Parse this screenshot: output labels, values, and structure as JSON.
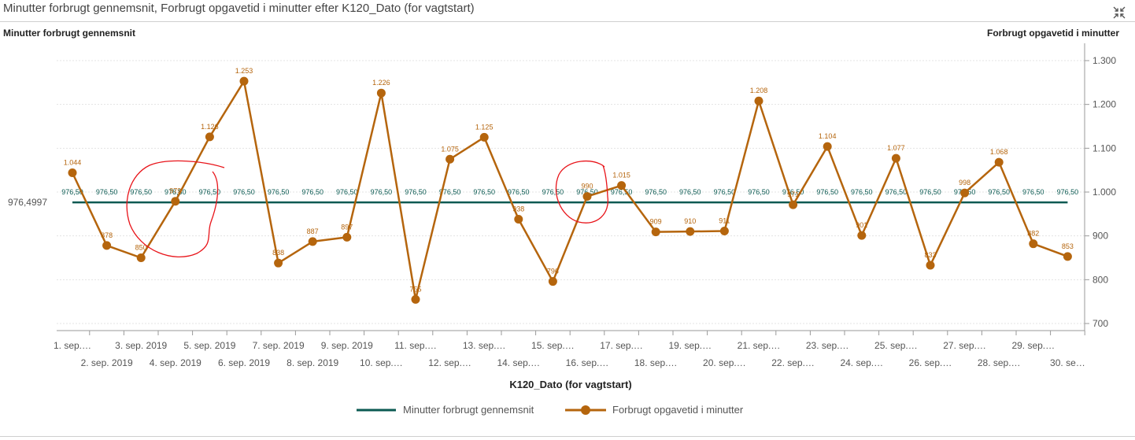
{
  "header": {
    "title": "Minutter forbrugt gennemsnit, Forbrugt opgavetid i minutter efter K120_Dato (for vagtstart)",
    "collapse_icon": "collapse-arrows-icon"
  },
  "chart_data": {
    "type": "line",
    "xlabel": "K120_Dato (for vagtstart)",
    "ylabel_left": "Minutter forbrugt gennemsnit",
    "ylabel_right": "Forbrugt opgavetid i minutter",
    "left_axis_tick": "976,4997",
    "right_ticks": [
      "700",
      "800",
      "900",
      "1.000",
      "1.100",
      "1.200",
      "1.300"
    ],
    "ylim": [
      680,
      1310
    ],
    "grid": true,
    "legend_placement": "bottom",
    "categories": [
      "1. sep.…",
      "2. sep. 2019",
      "3. sep. 2019",
      "4. sep. 2019",
      "5. sep. 2019",
      "6. sep. 2019",
      "7. sep. 2019",
      "8. sep. 2019",
      "9. sep. 2019",
      "10. sep.…",
      "11. sep.…",
      "12. sep.…",
      "13. sep.…",
      "14. sep.…",
      "15. sep.…",
      "16. sep.…",
      "17. sep.…",
      "18. sep.…",
      "19. sep.…",
      "20. sep.…",
      "21. sep.…",
      "22. sep.…",
      "23. sep.…",
      "24. sep.…",
      "25. sep.…",
      "26. sep.…",
      "27. sep.…",
      "28. sep.…",
      "29. sep.…",
      "30. se…"
    ],
    "series": [
      {
        "name": "Minutter forbrugt gennemsnit",
        "color": "#0b5a52",
        "values": [
          976.5,
          976.5,
          976.5,
          976.5,
          976.5,
          976.5,
          976.5,
          976.5,
          976.5,
          976.5,
          976.5,
          976.5,
          976.5,
          976.5,
          976.5,
          976.5,
          976.5,
          976.5,
          976.5,
          976.5,
          976.5,
          976.5,
          976.5,
          976.5,
          976.5,
          976.5,
          976.5,
          976.5,
          976.5,
          976.5
        ],
        "labels": [
          "976,50",
          "976,50",
          "976,50",
          "976,50",
          "976,50",
          "976,50",
          "976,50",
          "976,50",
          "976,50",
          "976,50",
          "976,50",
          "976,50",
          "976,50",
          "976,50",
          "976,50",
          "976,50",
          "976,50",
          "976,50",
          "976,50",
          "976,50",
          "976,50",
          "976,50",
          "976,50",
          "976,50",
          "976,50",
          "976,50",
          "976,50",
          "976,50",
          "976,50",
          "976,50"
        ]
      },
      {
        "name": "Forbrugt opgavetid i minutter",
        "color": "#b5650d",
        "values": [
          1044,
          878,
          850,
          979,
          1126,
          1253,
          838,
          887,
          897,
          1226,
          755,
          1075,
          1125,
          938,
          796,
          990,
          1015,
          909,
          910,
          911,
          1208,
          971,
          1104,
          901,
          1077,
          833,
          998,
          1068,
          882,
          853
        ],
        "labels": [
          "1.044",
          "878",
          "850",
          "979",
          "1.126",
          "1.253",
          "838",
          "887",
          "897",
          "1.226",
          "755",
          "1.075",
          "1.125",
          "938",
          "796",
          "990",
          "1.015",
          "909",
          "910",
          "911",
          "1.208",
          "971",
          "1.104",
          "901",
          "1.077",
          "833",
          "998",
          "1.068",
          "882",
          "853"
        ]
      }
    ],
    "annotation_color": "#e8141a"
  }
}
